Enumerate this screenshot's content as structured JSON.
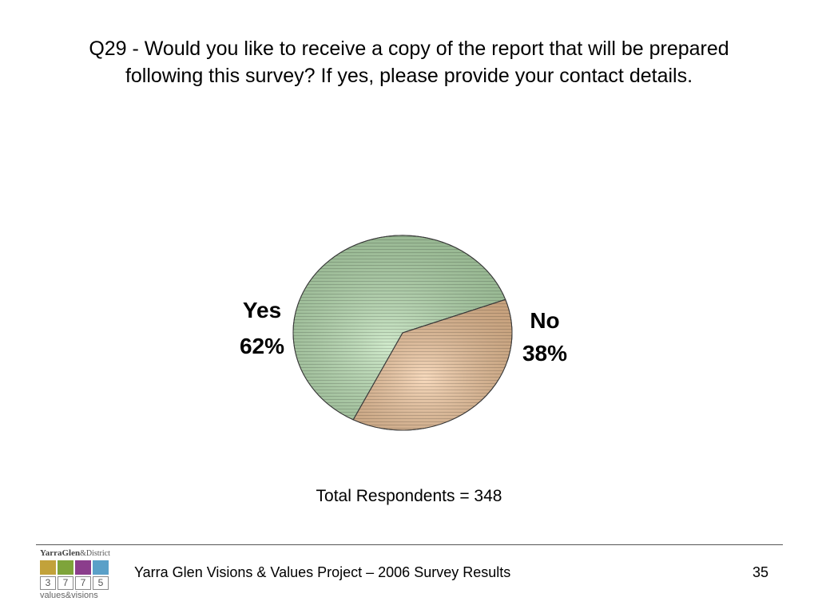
{
  "slide": {
    "title": "Q29 - Would you like to receive a copy of the report that will be prepared following this survey? If yes, please provide your contact details.",
    "total_respondents": "Total Respondents = 348"
  },
  "chart_data": {
    "type": "pie",
    "title": "",
    "slices": [
      {
        "label": "Yes",
        "value": 62,
        "value_label": "62%",
        "color": "#b7dfb0"
      },
      {
        "label": "No",
        "value": 38,
        "value_label": "38%",
        "color": "#f3c69a"
      }
    ],
    "start_angle_deg": 70,
    "hatched": true
  },
  "footer": {
    "text": "Yarra Glen Visions & Values Project – 2006 Survey Results",
    "page_number": "35"
  },
  "logo": {
    "top_text": "YarraGlen",
    "top_suffix": "&District",
    "digits": [
      "3",
      "7",
      "7",
      "5"
    ],
    "bottom_text": "values&visions",
    "tile_colors": [
      "#c2a23a",
      "#7ea43a",
      "#8b3d8c",
      "#5aa0c8"
    ]
  }
}
